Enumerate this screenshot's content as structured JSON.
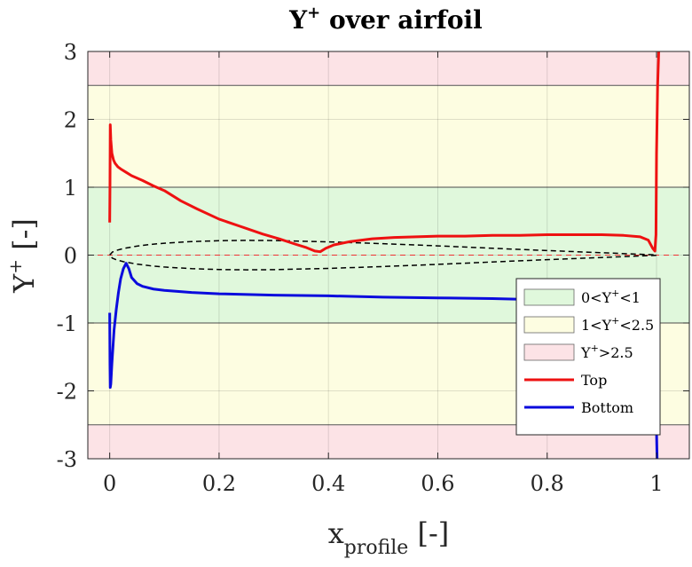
{
  "chart_data": {
    "type": "line",
    "title": "Y",
    "title_sup": "+",
    "title_rest": " over airfoil",
    "xlabel": "x",
    "xlabel_sub": "profile",
    "xlabel_rest": " [-]",
    "ylabel": "Y",
    "ylabel_sup": "+",
    "ylabel_rest": " [-]",
    "xlim": [
      -0.04,
      1.06
    ],
    "ylim": [
      -3,
      3
    ],
    "x_ticks": [
      0,
      0.2,
      0.4,
      0.6,
      0.8,
      1
    ],
    "x_tick_labels": [
      "0",
      "0.2",
      "0.4",
      "0.6",
      "0.8",
      "1"
    ],
    "y_ticks": [
      -3,
      -2,
      -1,
      0,
      1,
      2,
      3
    ],
    "y_tick_labels": [
      "-3",
      "-2",
      "-1",
      "0",
      "1",
      "2",
      "3"
    ],
    "grid": true,
    "legend_position": "lower-right",
    "bands": [
      {
        "name": "0<Y+<1",
        "label_pre": "0<Y",
        "label_sup": "+",
        "label_post": "<1",
        "ranges": [
          [
            -1,
            1
          ]
        ],
        "color": "#e0f8dc"
      },
      {
        "name": "1<Y+<2.5",
        "label_pre": "1<Y",
        "label_sup": "+",
        "label_post": "<2.5",
        "ranges": [
          [
            1,
            2.5
          ],
          [
            -2.5,
            -1
          ]
        ],
        "color": "#fdfde1"
      },
      {
        "name": "Y+>2.5",
        "label_pre": "Y",
        "label_sup": "+",
        "label_post": ">2.5",
        "ranges": [
          [
            2.5,
            3
          ],
          [
            -3,
            -2.5
          ]
        ],
        "color": "#fce3e6"
      }
    ],
    "series": [
      {
        "name": "Top",
        "color": "#ee1111",
        "x": [
          0,
          0.0005,
          0.001,
          0.002,
          0.004,
          0.007,
          0.01,
          0.015,
          0.02,
          0.03,
          0.04,
          0.06,
          0.08,
          0.1,
          0.13,
          0.16,
          0.2,
          0.24,
          0.28,
          0.31,
          0.34,
          0.36,
          0.375,
          0.385,
          0.395,
          0.41,
          0.44,
          0.48,
          0.52,
          0.56,
          0.6,
          0.65,
          0.7,
          0.75,
          0.8,
          0.85,
          0.9,
          0.94,
          0.97,
          0.985,
          0.993,
          0.997,
          0.999,
          1.0,
          1.002,
          1.004
        ],
        "y": [
          0.48,
          1.0,
          1.92,
          1.7,
          1.5,
          1.4,
          1.35,
          1.3,
          1.27,
          1.22,
          1.17,
          1.1,
          1.02,
          0.95,
          0.8,
          0.68,
          0.53,
          0.42,
          0.31,
          0.24,
          0.16,
          0.11,
          0.06,
          0.05,
          0.1,
          0.15,
          0.2,
          0.24,
          0.26,
          0.27,
          0.28,
          0.28,
          0.29,
          0.29,
          0.3,
          0.3,
          0.3,
          0.29,
          0.27,
          0.22,
          0.1,
          0.06,
          0.3,
          1.5,
          2.5,
          3.0
        ]
      },
      {
        "name": "Bottom",
        "color": "#0b0bdd",
        "x": [
          0,
          0.0005,
          0.001,
          0.002,
          0.004,
          0.006,
          0.008,
          0.012,
          0.016,
          0.02,
          0.025,
          0.03,
          0.035,
          0.04,
          0.05,
          0.06,
          0.08,
          0.1,
          0.15,
          0.2,
          0.3,
          0.4,
          0.5,
          0.6,
          0.7,
          0.75
        ],
        "y": [
          -0.85,
          -1.6,
          -1.95,
          -1.9,
          -1.6,
          -1.35,
          -1.1,
          -0.8,
          -0.55,
          -0.35,
          -0.2,
          -0.12,
          -0.2,
          -0.33,
          -0.42,
          -0.46,
          -0.5,
          -0.52,
          -0.55,
          -0.57,
          -0.59,
          -0.6,
          -0.62,
          -0.63,
          -0.64,
          -0.65
        ]
      }
    ],
    "edge_series": {
      "name": "Bottom trailing edge",
      "x": [
        1.0,
        1.0005,
        1.001
      ],
      "y": [
        -2.6,
        -2.8,
        -3.0
      ]
    },
    "airfoil_outline": {
      "upper": {
        "x": [
          0,
          0.005,
          0.0125,
          0.025,
          0.05,
          0.075,
          0.1,
          0.15,
          0.2,
          0.25,
          0.3,
          0.4,
          0.5,
          0.6,
          0.7,
          0.8,
          0.9,
          0.95,
          1.0
        ],
        "y": [
          0,
          0.0452,
          0.07,
          0.0968,
          0.1328,
          0.1576,
          0.1756,
          0.1996,
          0.2124,
          0.2168,
          0.2144,
          0.1956,
          0.1684,
          0.1364,
          0.1008,
          0.0672,
          0.0352,
          0.0188,
          0.0028
        ]
      },
      "lower": {
        "x": [
          0,
          0.005,
          0.0125,
          0.025,
          0.05,
          0.075,
          0.1,
          0.15,
          0.2,
          0.25,
          0.3,
          0.4,
          0.5,
          0.6,
          0.7,
          0.8,
          0.9,
          0.95,
          1.0
        ],
        "y": [
          0,
          -0.0452,
          -0.07,
          -0.0968,
          -0.1328,
          -0.1576,
          -0.1756,
          -0.1996,
          -0.2124,
          -0.2168,
          -0.2144,
          -0.1956,
          -0.1684,
          -0.1364,
          -0.1008,
          -0.0672,
          -0.0352,
          -0.0188,
          -0.0028
        ]
      },
      "color": "#000000"
    },
    "zero_line_color": "#ee3333"
  }
}
